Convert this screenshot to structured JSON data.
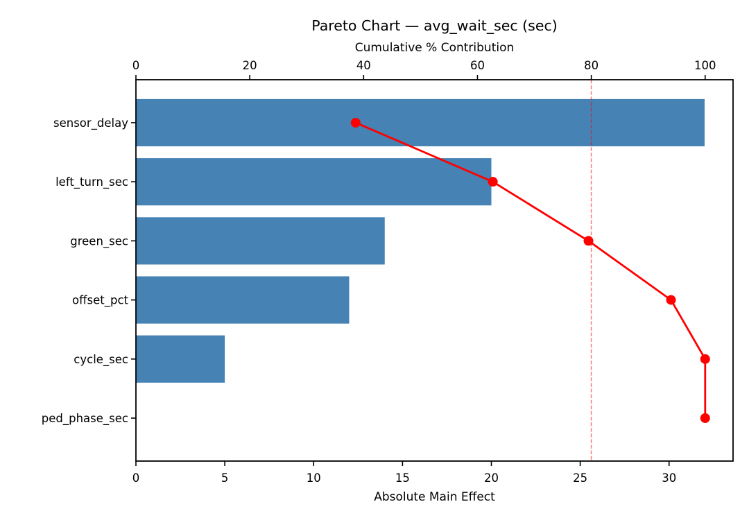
{
  "title": "Pareto Chart — avg_wait_sec (sec)",
  "chart_data": {
    "type": "bar",
    "subtype": "pareto-horizontal-bars-with-cumulative-line",
    "title": "Pareto Chart — avg_wait_sec (sec)",
    "top_axis_label": "Cumulative % Contribution",
    "bottom_axis_label": "Absolute Main Effect",
    "categories": [
      "sensor_delay",
      "left_turn_sec",
      "green_sec",
      "offset_pct",
      "cycle_sec",
      "ped_phase_sec"
    ],
    "series": [
      {
        "name": "Absolute Main Effect",
        "type": "barh",
        "values": [
          32,
          20,
          14,
          12,
          5,
          0
        ]
      },
      {
        "name": "Cumulative % Contribution",
        "type": "line",
        "values": [
          38.6,
          62.7,
          79.5,
          94.0,
          100.0,
          100.0
        ]
      }
    ],
    "threshold_pct": 80,
    "bottom_ticks": [
      0,
      5,
      10,
      15,
      20,
      25,
      30
    ],
    "top_ticks": [
      0,
      20,
      40,
      60,
      80,
      100
    ],
    "bottom_xlim": [
      0,
      33.6
    ],
    "top_xlim": [
      0,
      104.9
    ],
    "grid": false,
    "legend": "none",
    "colors": {
      "bar": "#4682B4",
      "line": "#FF0000",
      "marker": "#FF0000",
      "threshold": "#FF0000",
      "threshold_opacity": 0.5,
      "axis": "#000000",
      "text": "#000000",
      "background": "#FFFFFF"
    }
  }
}
